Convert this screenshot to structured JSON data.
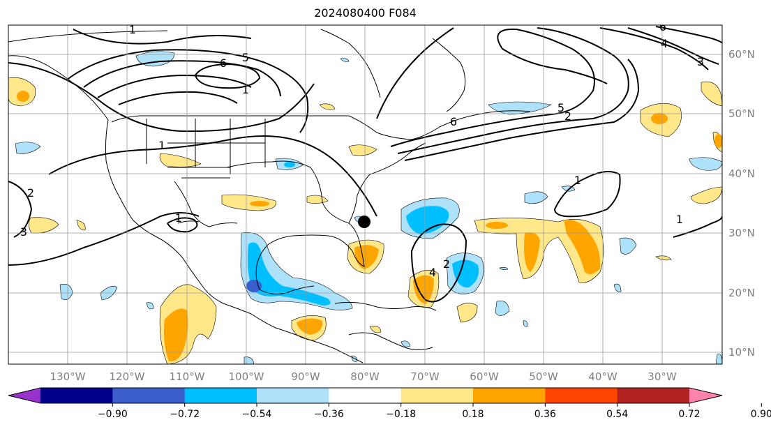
{
  "title": "2024080400 F084",
  "map": {
    "lon_labels": [
      "130°W",
      "120°W",
      "110°W",
      "100°W",
      "90°W",
      "80°W",
      "70°W",
      "60°W",
      "50°W",
      "40°W",
      "30°W"
    ],
    "lat_labels": [
      "60°N",
      "50°N",
      "40°N",
      "30°N",
      "20°N",
      "10°N"
    ],
    "contour_labels": [
      "1",
      "1",
      "2",
      "3",
      "5",
      "6",
      "1",
      "4",
      "6",
      "5",
      "2",
      "6",
      "4",
      "3",
      "1",
      "1",
      "1",
      "2"
    ]
  },
  "colorbar": {
    "ticks": [
      "−0.90",
      "−0.72",
      "−0.54",
      "−0.36",
      "−0.18",
      "0.18",
      "0.36",
      "0.54",
      "0.72",
      "0.90"
    ],
    "colors": [
      "#9932cc",
      "#00008b",
      "#3a5fcd",
      "#00bfff",
      "#aee1fa",
      "#ffffff",
      "#ffe78a",
      "#ffa500",
      "#ff4500",
      "#b22222",
      "#ff82ab"
    ]
  }
}
